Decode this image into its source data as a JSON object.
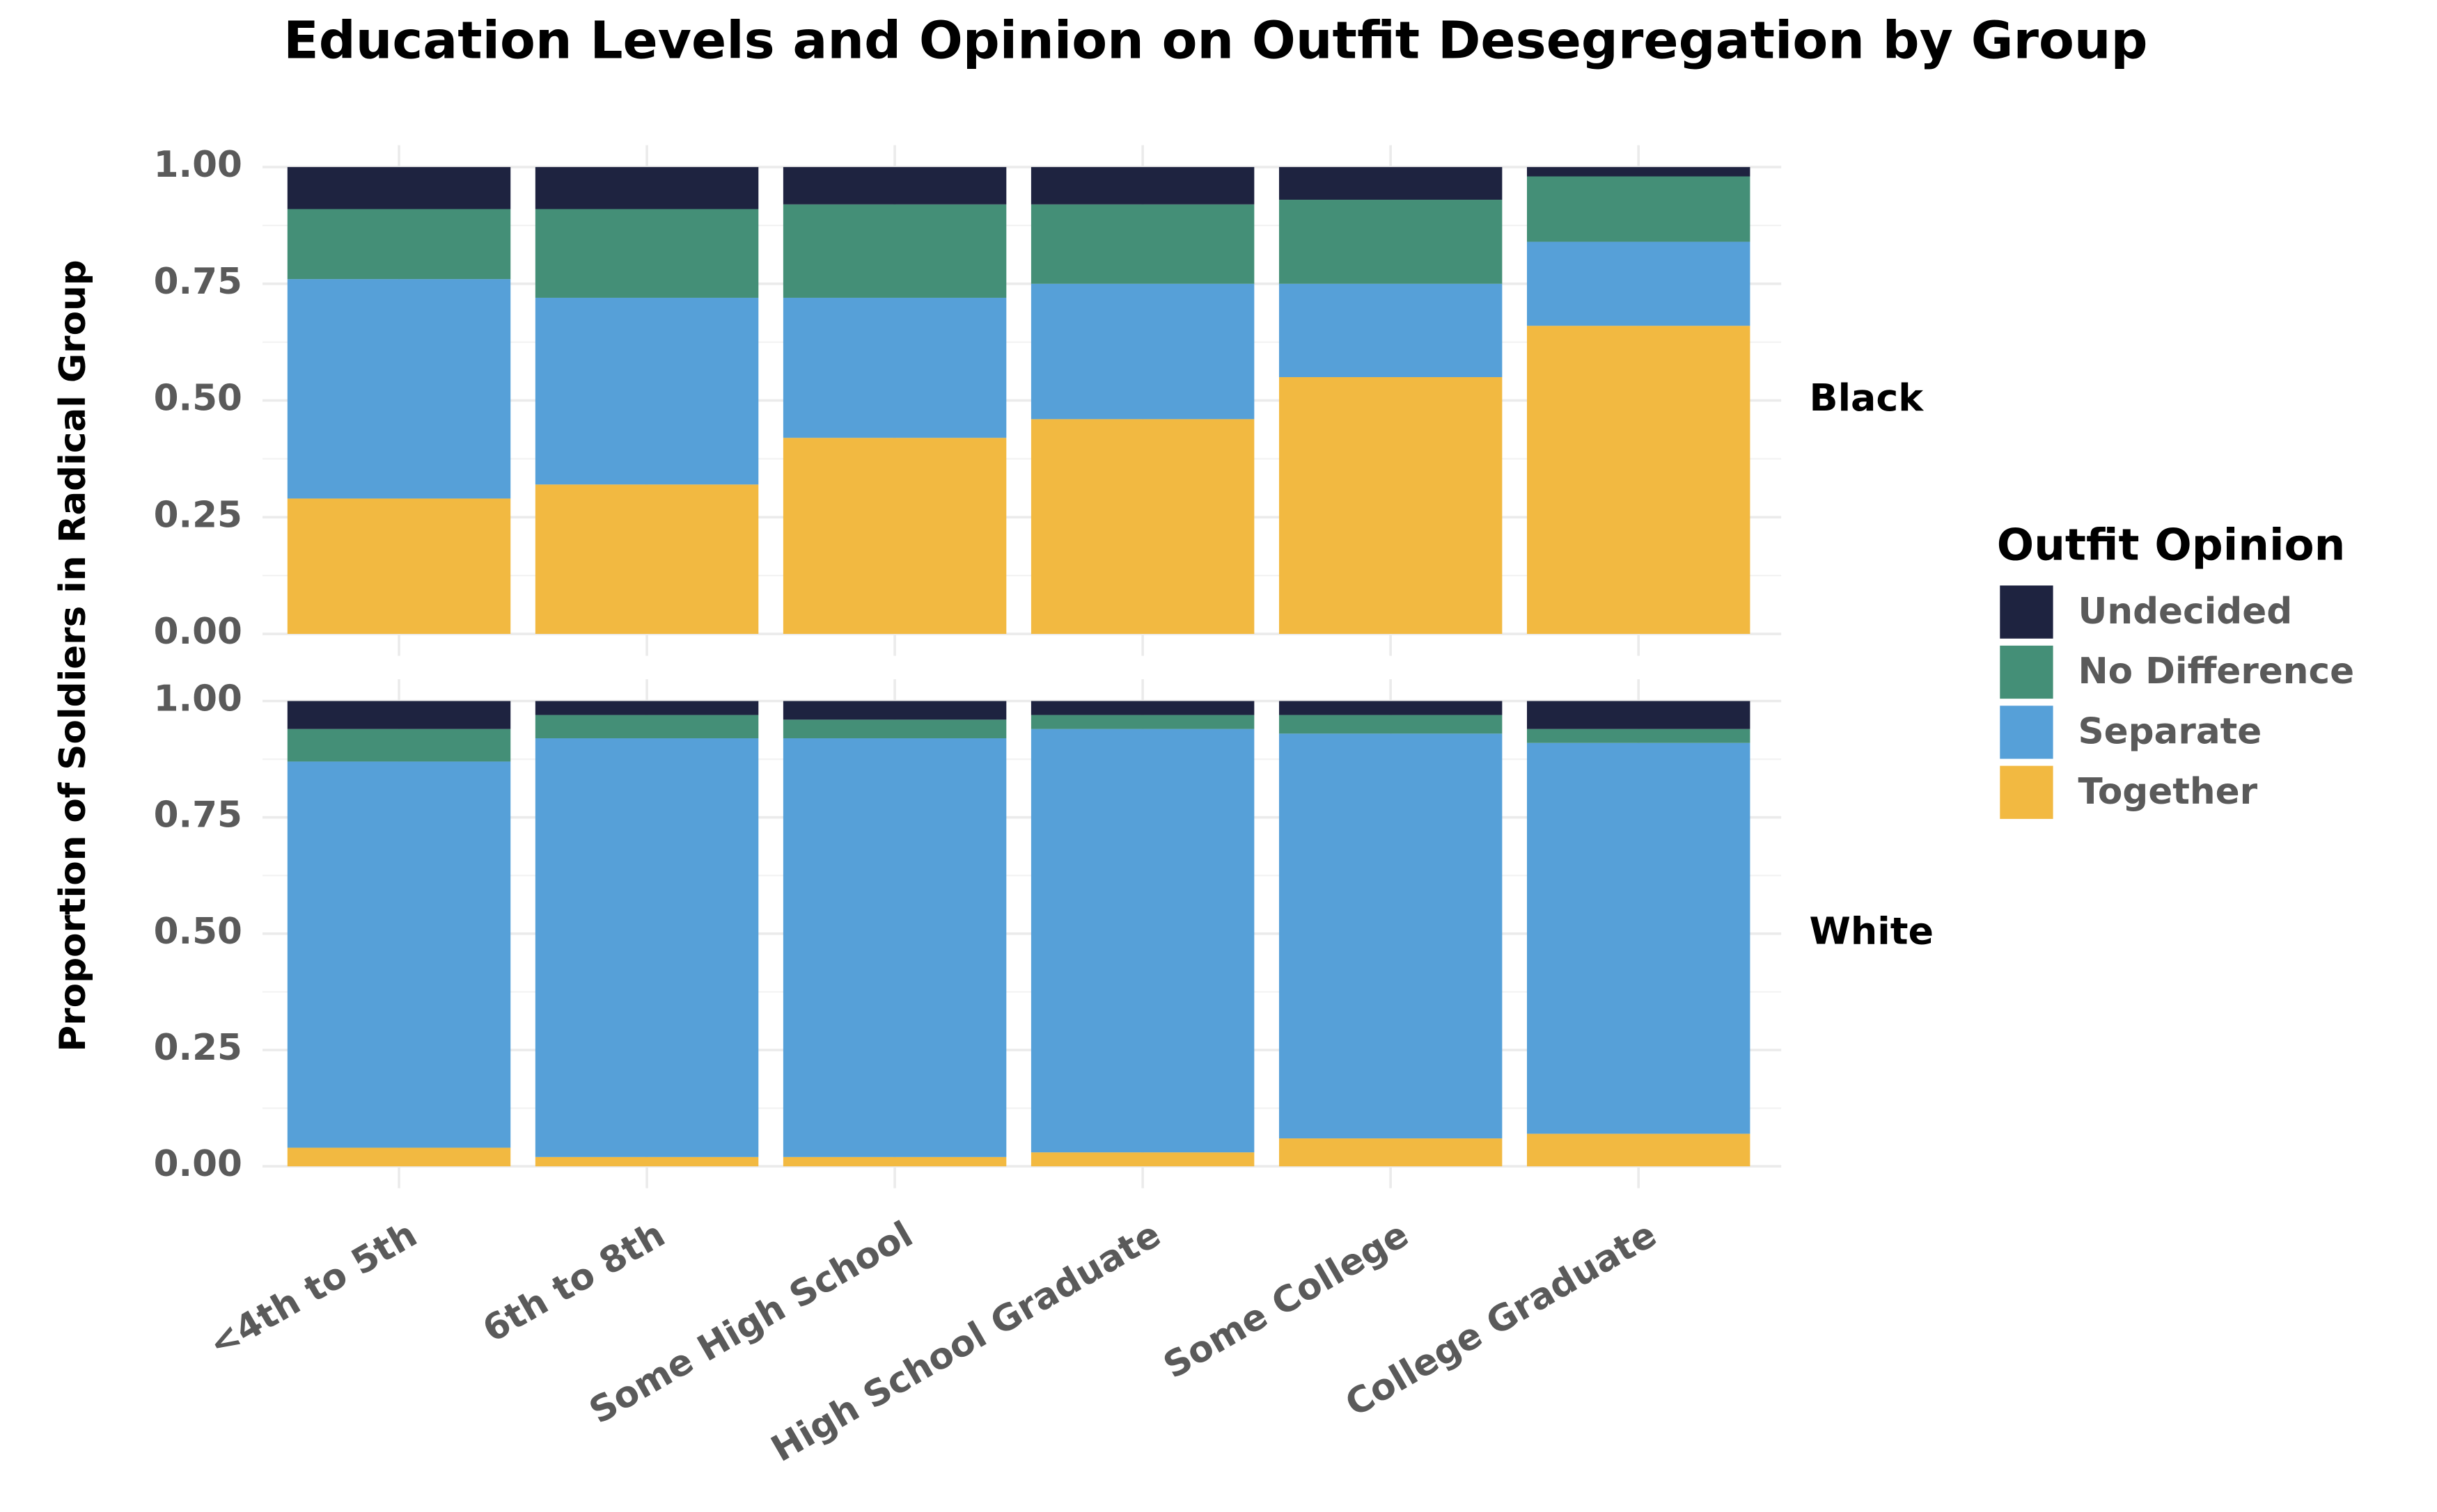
{
  "chart_data": {
    "type": "bar",
    "stacked": true,
    "title": "Education Levels and Opinion on Outfit Desegregation by Group",
    "y_label": "Proportion of Soldiers in Radical Group",
    "legend_title": "Outfit Opinion",
    "facets": [
      "Black",
      "White"
    ],
    "categories": [
      "<4th to 5th",
      "6th to 8th",
      "Some High School",
      "High School Graduate",
      "Some College",
      "College Graduate"
    ],
    "ylim": [
      0,
      1
    ],
    "yticks": [
      {
        "value": 0,
        "label": "0.00"
      },
      {
        "value": 0.25,
        "label": "0.25"
      },
      {
        "value": 0.5,
        "label": "0.50"
      },
      {
        "value": 0.75,
        "label": "0.75"
      },
      {
        "value": 1,
        "label": "1.00"
      }
    ],
    "grid": true,
    "series": [
      {
        "name": "Together",
        "color": "#f2b941",
        "values": [
          [
            0.29,
            0.32,
            0.42,
            0.46,
            0.55,
            0.66
          ],
          [
            0.04,
            0.02,
            0.02,
            0.03,
            0.06,
            0.07
          ]
        ]
      },
      {
        "name": "Separate",
        "color": "#56a0d8",
        "values": [
          [
            0.47,
            0.4,
            0.3,
            0.29,
            0.2,
            0.18
          ],
          [
            0.83,
            0.9,
            0.9,
            0.91,
            0.87,
            0.84
          ]
        ]
      },
      {
        "name": "No Difference",
        "color": "#448f77",
        "values": [
          [
            0.15,
            0.19,
            0.2,
            0.17,
            0.18,
            0.14
          ],
          [
            0.07,
            0.05,
            0.04,
            0.03,
            0.04,
            0.03
          ]
        ]
      },
      {
        "name": "Undecided",
        "color": "#1e2340",
        "values": [
          [
            0.09,
            0.09,
            0.08,
            0.08,
            0.07,
            0.02
          ],
          [
            0.06,
            0.03,
            0.04,
            0.03,
            0.03,
            0.06
          ]
        ]
      }
    ]
  }
}
